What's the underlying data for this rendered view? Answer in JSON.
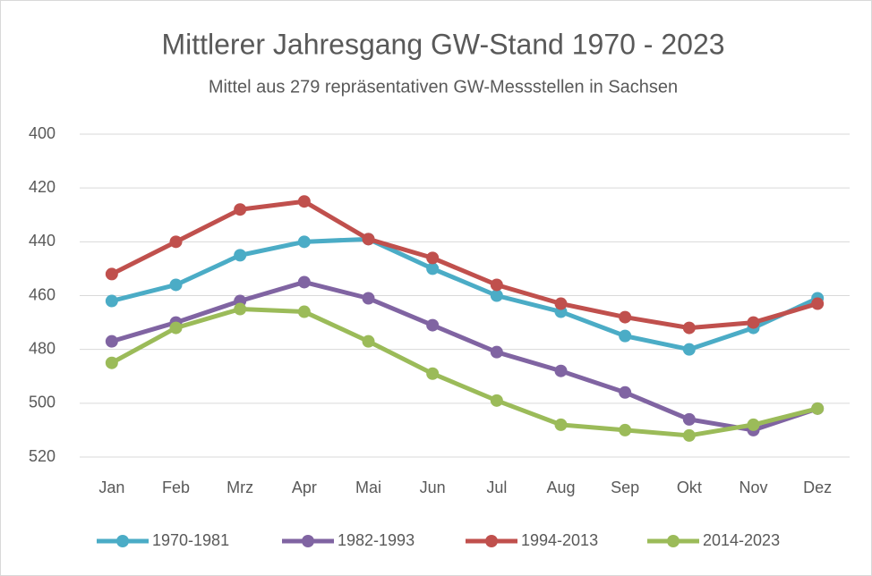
{
  "chart_data": {
    "type": "line",
    "title": "Mittlerer Jahresgang GW-Stand 1970 - 2023",
    "subtitle": "Mittel aus 279 repräsentativen GW-Messstellen in Sachsen",
    "categories": [
      "Jan",
      "Feb",
      "Mrz",
      "Apr",
      "Mai",
      "Jun",
      "Jul",
      "Aug",
      "Sep",
      "Okt",
      "Nov",
      "Dez"
    ],
    "series": [
      {
        "name": "1970-1981",
        "color": "#4bacc6",
        "values": [
          462,
          456,
          445,
          440,
          439,
          450,
          460,
          466,
          475,
          480,
          472,
          461
        ]
      },
      {
        "name": "1982-1993",
        "color": "#8064a2",
        "values": [
          477,
          470,
          462,
          455,
          461,
          471,
          481,
          488,
          496,
          506,
          510,
          502
        ]
      },
      {
        "name": "1994-2013",
        "color": "#c0504d",
        "values": [
          452,
          440,
          428,
          425,
          439,
          446,
          456,
          463,
          468,
          472,
          470,
          463
        ]
      },
      {
        "name": "2014-2023",
        "color": "#9bbb59",
        "values": [
          485,
          472,
          465,
          466,
          477,
          489,
          499,
          508,
          510,
          512,
          508,
          502
        ]
      }
    ],
    "ylim": [
      400,
      520
    ],
    "yticks": [
      400,
      420,
      440,
      460,
      480,
      500,
      520
    ],
    "y_inverted": true,
    "grid": true,
    "legend": "bottom"
  }
}
